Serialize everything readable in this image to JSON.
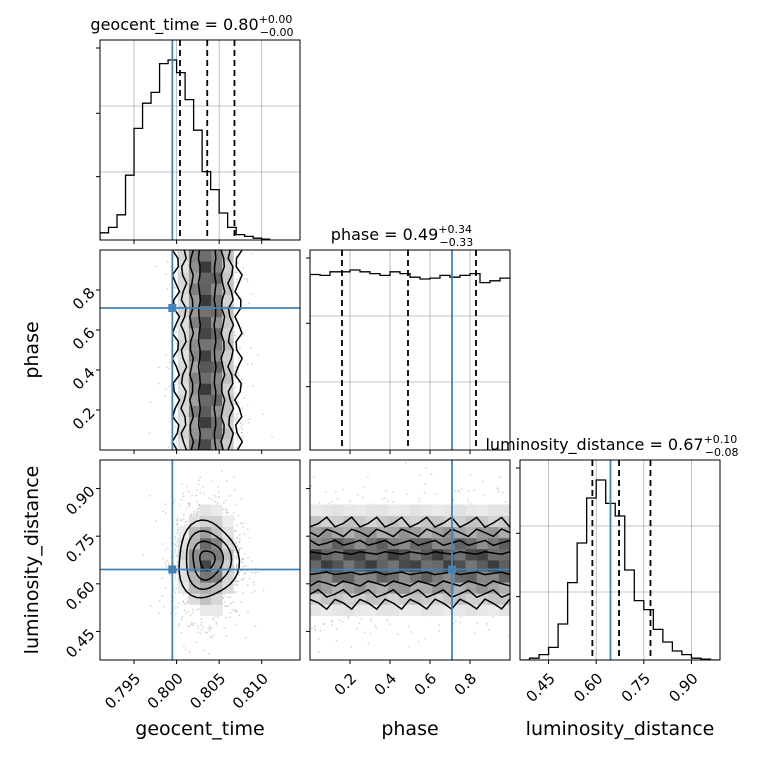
{
  "chart_data": {
    "type": "corner",
    "parameters": [
      {
        "name": "geocent_time",
        "axis_label": "geocent_time",
        "range": [
          0.791,
          0.8145
        ],
        "ticks": [
          0.795,
          0.8,
          0.805,
          0.81
        ],
        "tick_labels": [
          "0.795",
          "0.800",
          "0.805",
          "0.810"
        ],
        "truth": 0.7995,
        "quantiles": [
          0.8004,
          0.8036,
          0.8068
        ],
        "title_main": "geocent_time = 0.80",
        "title_plus": "+0.00",
        "title_minus": "−0.00",
        "hist_edges_start": 0.791,
        "hist_bin_width": 0.001,
        "hist_counts": [
          0.04,
          0.07,
          0.14,
          0.36,
          0.62,
          0.76,
          0.82,
          0.98,
          1.0,
          0.93,
          0.78,
          0.61,
          0.38,
          0.28,
          0.15,
          0.07,
          0.03,
          0.02,
          0.01,
          0.005
        ]
      },
      {
        "name": "phase",
        "axis_label": "phase",
        "range": [
          0.0,
          1.0
        ],
        "ticks": [
          0.2,
          0.4,
          0.6,
          0.8
        ],
        "tick_labels": [
          "0.2",
          "0.4",
          "0.6",
          "0.8"
        ],
        "truth": 0.71,
        "quantiles": [
          0.16,
          0.49,
          0.83
        ],
        "title_main": "phase = 0.49",
        "title_plus": "+0.34",
        "title_minus": "−0.33",
        "hist_edges_start": 0.0,
        "hist_bin_width": 0.05,
        "hist_counts": [
          0.975,
          0.97,
          0.99,
          0.99,
          1.0,
          0.99,
          0.98,
          0.97,
          0.99,
          0.98,
          0.96,
          0.95,
          0.955,
          0.97,
          0.96,
          0.97,
          0.98,
          0.93,
          0.94,
          0.955
        ]
      },
      {
        "name": "luminosity_distance",
        "axis_label": "luminosity_distance",
        "range": [
          0.36,
          0.99
        ],
        "ticks": [
          0.45,
          0.6,
          0.75,
          0.9
        ],
        "tick_labels": [
          "0.45",
          "0.60",
          "0.75",
          "0.90"
        ],
        "truth": 0.645,
        "quantiles": [
          0.588,
          0.672,
          0.771
        ],
        "title_main": "luminosity_distance = 0.67",
        "title_plus": "+0.10",
        "title_minus": "−0.08",
        "hist_edges_start": 0.36,
        "hist_bin_width": 0.03,
        "hist_counts": [
          0.0,
          0.01,
          0.03,
          0.07,
          0.2,
          0.43,
          0.65,
          0.9,
          1.0,
          0.87,
          0.8,
          0.5,
          0.33,
          0.28,
          0.17,
          0.1,
          0.05,
          0.03,
          0.01,
          0.005,
          0.0
        ]
      }
    ],
    "grid": true
  }
}
